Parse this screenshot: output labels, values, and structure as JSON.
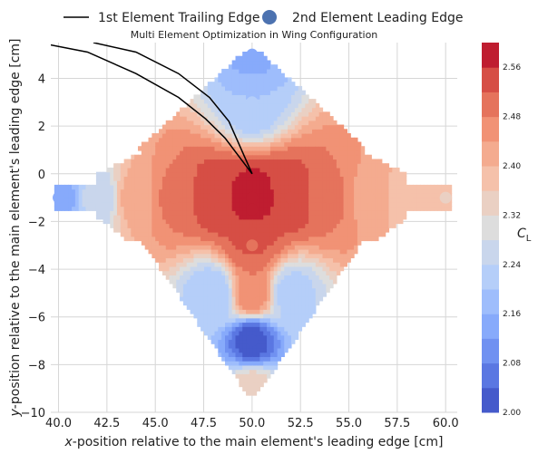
{
  "chart_data": {
    "type": "contour",
    "title": "Multi Element Optimization in Wing Configuration",
    "xlabel_italic": "x",
    "xlabel_rest": "-position relative to the main element's leading edge [cm]",
    "ylabel_italic": "y",
    "ylabel_rest": "-position relative to the main element's leading edge [cm]",
    "xlim": [
      39.6,
      60.6
    ],
    "ylim": [
      -10,
      5.5
    ],
    "xticks": [
      "40.0",
      "42.5",
      "45.0",
      "47.5",
      "50.0",
      "52.5",
      "55.0",
      "57.5",
      "60.0"
    ],
    "yticks": [
      "4",
      "2",
      "0",
      "−2",
      "−4",
      "−6",
      "−8",
      "−10"
    ],
    "xtick_values": [
      40,
      42.5,
      45,
      47.5,
      50,
      52.5,
      55,
      57.5,
      60
    ],
    "ytick_values": [
      4,
      2,
      0,
      -2,
      -4,
      -6,
      -8,
      -10
    ],
    "legend": {
      "placement": "top",
      "line_label": "1st Element Trailing Edge",
      "marker_label": "2nd Element Leading Edge"
    },
    "colorbar": {
      "label_italic": "C",
      "label_sub": "L",
      "levels": [
        2.0,
        2.04,
        2.08,
        2.12,
        2.16,
        2.2,
        2.24,
        2.28,
        2.32,
        2.36,
        2.4,
        2.44,
        2.48,
        2.52,
        2.56,
        2.6
      ],
      "tick_labels": [
        "2.00",
        "2.08",
        "2.16",
        "2.24",
        "2.32",
        "2.40",
        "2.48",
        "2.56"
      ],
      "tick_values": [
        2.0,
        2.08,
        2.16,
        2.24,
        2.32,
        2.4,
        2.48,
        2.56
      ],
      "colormap": "coolwarm"
    },
    "trailing_edge_lines": [
      {
        "x": [
          39.6,
          41.5,
          44.0,
          46.2,
          47.6,
          48.6,
          50.0
        ],
        "y": [
          5.4,
          5.1,
          4.2,
          3.2,
          2.3,
          1.5,
          0.0
        ]
      },
      {
        "x": [
          41.8,
          44.0,
          46.2,
          47.8,
          48.8,
          50.0
        ],
        "y": [
          5.5,
          5.1,
          4.2,
          3.2,
          2.2,
          0.0
        ]
      }
    ],
    "points": [
      {
        "x": 50,
        "y": 5,
        "cl": 2.15
      },
      {
        "x": 50,
        "y": 3,
        "cl": 2.2
      },
      {
        "x": 40,
        "y": -1,
        "cl": 2.14
      },
      {
        "x": 42,
        "y": -1,
        "cl": 2.25
      },
      {
        "x": 44,
        "y": -1,
        "cl": 2.42
      },
      {
        "x": 46,
        "y": -1,
        "cl": 2.49
      },
      {
        "x": 48,
        "y": -1,
        "cl": 2.55
      },
      {
        "x": 50,
        "y": -1,
        "cl": 2.58
      },
      {
        "x": 52,
        "y": -1,
        "cl": 2.55
      },
      {
        "x": 54,
        "y": -1,
        "cl": 2.49
      },
      {
        "x": 56,
        "y": -1,
        "cl": 2.43
      },
      {
        "x": 58,
        "y": -1,
        "cl": 2.38
      },
      {
        "x": 60,
        "y": -1,
        "cl": 2.36
      },
      {
        "x": 50,
        "y": -1.5,
        "cl": 2.57
      },
      {
        "x": 50,
        "y": -2.5,
        "cl": 2.53
      },
      {
        "x": 50,
        "y": -3,
        "cl": 2.52
      },
      {
        "x": 50,
        "y": -5,
        "cl": 2.48
      },
      {
        "x": 48,
        "y": -5,
        "cl": 2.2
      },
      {
        "x": 52,
        "y": -5,
        "cl": 2.22
      },
      {
        "x": 50,
        "y": -7,
        "cl": 2.02
      },
      {
        "x": 50,
        "y": -9,
        "cl": 2.35
      }
    ]
  }
}
